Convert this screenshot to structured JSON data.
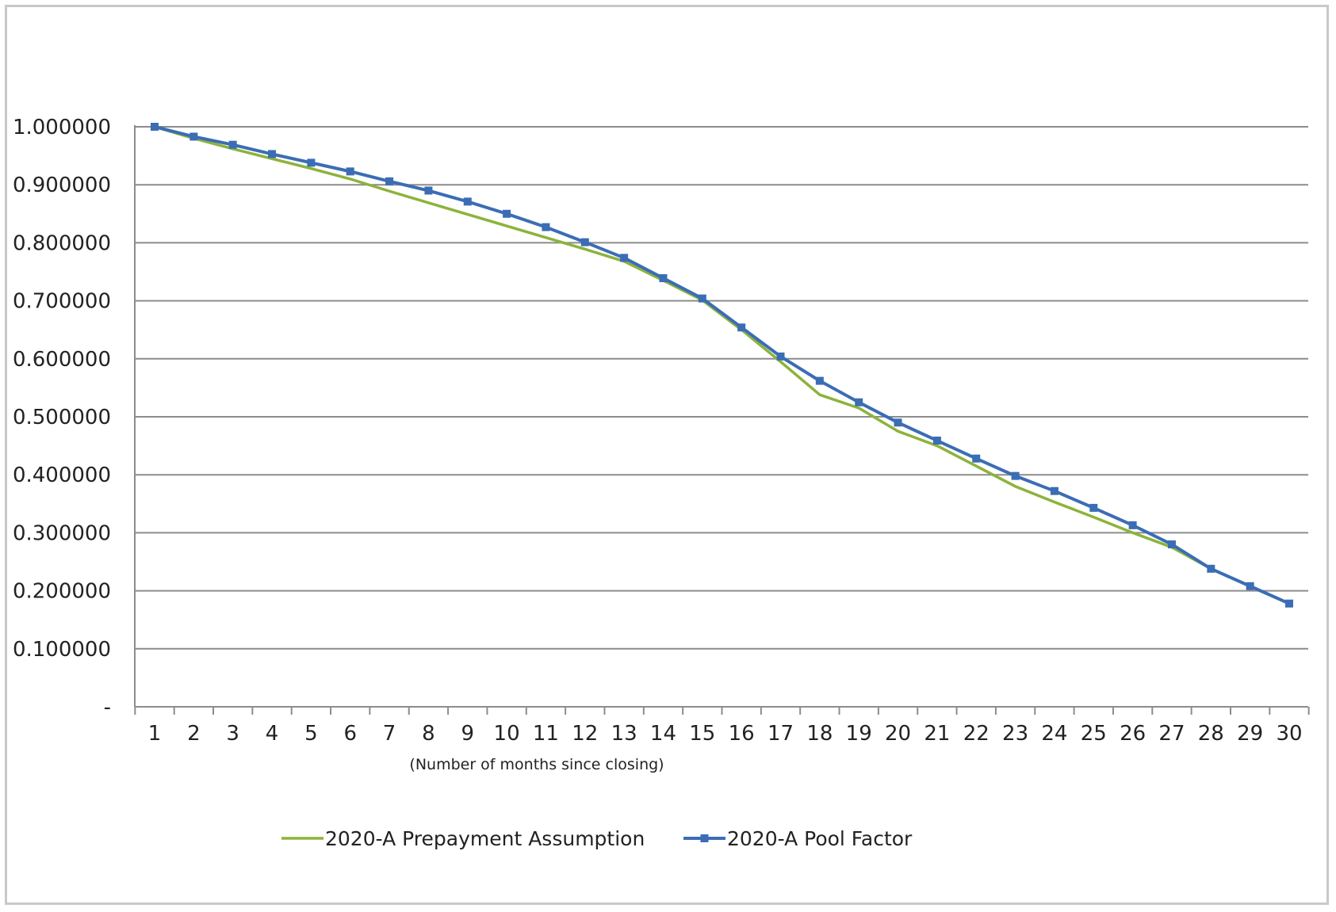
{
  "chart_data": {
    "type": "line",
    "xlabel": "(Number of months since closing)",
    "ylabel": "",
    "x": [
      1,
      2,
      3,
      4,
      5,
      6,
      7,
      8,
      9,
      10,
      11,
      12,
      13,
      14,
      15,
      16,
      17,
      18,
      19,
      20,
      21,
      22,
      23,
      24,
      25,
      26,
      27,
      28,
      29,
      30
    ],
    "ylim": [
      0,
      1.0
    ],
    "yticks": [
      "-",
      "0.100000",
      "0.200000",
      "0.300000",
      "0.400000",
      "0.500000",
      "0.600000",
      "0.700000",
      "0.800000",
      "0.900000",
      "1.000000"
    ],
    "grid": true,
    "legend_position": "bottom",
    "series": [
      {
        "name": "2020-A Prepayment Assumption",
        "color": "#8db33a",
        "marker": "none",
        "values": [
          1.0,
          0.98,
          0.962,
          0.945,
          0.928,
          0.91,
          0.889,
          0.869,
          0.849,
          0.829,
          0.809,
          0.789,
          0.768,
          0.735,
          0.701,
          0.65,
          0.595,
          0.538,
          0.515,
          0.475,
          0.45,
          0.415,
          0.38,
          0.353,
          0.327,
          0.3,
          0.275,
          0.238,
          0.208,
          0.178
        ]
      },
      {
        "name": "2020-A Pool Factor",
        "color": "#3b6db5",
        "marker": "square",
        "values": [
          1.0,
          0.983,
          0.969,
          0.953,
          0.938,
          0.923,
          0.906,
          0.89,
          0.871,
          0.85,
          0.827,
          0.801,
          0.774,
          0.739,
          0.704,
          0.654,
          0.604,
          0.562,
          0.525,
          0.49,
          0.459,
          0.428,
          0.398,
          0.372,
          0.343,
          0.313,
          0.28,
          0.238,
          0.208,
          0.178
        ]
      }
    ]
  }
}
